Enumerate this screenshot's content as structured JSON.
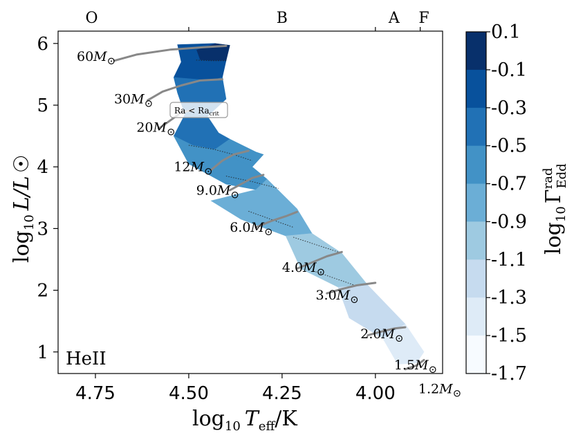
{
  "chart_data": {
    "type": "hr-diagram-contour",
    "title": "",
    "panel_label": "HeII",
    "xlabel": {
      "main": "log",
      "sub": "10",
      "var": "T",
      "varsub": "eff",
      "unit": "/K"
    },
    "ylabel": {
      "main": "log",
      "sub": "10",
      "var": "L/L",
      "sym": "☉"
    },
    "xlim": [
      4.85,
      3.82
    ],
    "ylim": [
      0.65,
      6.2
    ],
    "xticks": [
      {
        "value": 4.75,
        "label": "4.75"
      },
      {
        "value": 4.5,
        "label": "4.50"
      },
      {
        "value": 4.25,
        "label": "4.25"
      },
      {
        "value": 4.0,
        "label": "4.00"
      }
    ],
    "yticks": [
      {
        "value": 1,
        "label": "1"
      },
      {
        "value": 2,
        "label": "2"
      },
      {
        "value": 3,
        "label": "3"
      },
      {
        "value": 4,
        "label": "4"
      },
      {
        "value": 5,
        "label": "5"
      },
      {
        "value": 6,
        "label": "6"
      }
    ],
    "spectral_types": [
      {
        "label": "O",
        "position": 4.76
      },
      {
        "label": "B",
        "position": 4.25
      },
      {
        "label": "A",
        "position": 3.95
      },
      {
        "label": "F",
        "position": 3.87
      }
    ],
    "spectral_boundaries": [
      4.5,
      4.0,
      3.88
    ],
    "colorbar": {
      "label": {
        "main": "log",
        "sub": "10",
        "var": "Γ",
        "sup": "rad",
        "varsub": "Edd"
      },
      "ticks": [
        "0.1",
        "-0.1",
        "-0.3",
        "-0.5",
        "-0.7",
        "-0.9",
        "-1.1",
        "-1.3",
        "-1.5",
        "-1.7"
      ],
      "levels": [
        0.1,
        -0.1,
        -0.3,
        -0.5,
        -0.7,
        -0.9,
        -1.1,
        -1.3,
        -1.5,
        -1.7
      ],
      "colors": [
        "#08306b",
        "#08519c",
        "#2171b5",
        "#4292c6",
        "#6baed6",
        "#9ecae1",
        "#c6dbef",
        "#deebf7",
        "#f7fbff"
      ]
    },
    "contour_bands": [
      {
        "level": -0.1,
        "points": [
          [
            4.43,
            6.0
          ],
          [
            4.39,
            5.97
          ],
          [
            4.4,
            5.72
          ],
          [
            4.44,
            5.72
          ],
          [
            4.47,
            5.73
          ],
          [
            4.48,
            5.9
          ]
        ]
      },
      {
        "level": -0.3,
        "points": [
          [
            4.53,
            5.98
          ],
          [
            4.43,
            6.0
          ],
          [
            4.48,
            5.9
          ],
          [
            4.47,
            5.73
          ],
          [
            4.44,
            5.72
          ],
          [
            4.4,
            5.72
          ],
          [
            4.41,
            5.45
          ],
          [
            4.44,
            5.4
          ],
          [
            4.5,
            5.35
          ],
          [
            4.54,
            5.45
          ],
          [
            4.52,
            5.7
          ]
        ]
      },
      {
        "level": -0.5,
        "points": [
          [
            4.54,
            5.45
          ],
          [
            4.44,
            5.4
          ],
          [
            4.41,
            5.45
          ],
          [
            4.4,
            5.1
          ],
          [
            4.45,
            4.82
          ],
          [
            4.42,
            4.55
          ],
          [
            4.39,
            4.45
          ],
          [
            4.43,
            4.28
          ],
          [
            4.49,
            4.35
          ],
          [
            4.54,
            4.5
          ],
          [
            4.51,
            4.85
          ],
          [
            4.53,
            5.2
          ]
        ]
      },
      {
        "level": -0.7,
        "points": [
          [
            4.39,
            4.45
          ],
          [
            4.32,
            4.24
          ],
          [
            4.3,
            4.2
          ],
          [
            4.33,
            4.0
          ],
          [
            4.38,
            4.05
          ],
          [
            4.43,
            4.28
          ]
        ]
      },
      {
        "level": -0.7,
        "points": [
          [
            4.43,
            4.28
          ],
          [
            4.33,
            4.0
          ],
          [
            4.29,
            3.8
          ],
          [
            4.32,
            3.63
          ],
          [
            4.4,
            3.72
          ],
          [
            4.5,
            4.05
          ],
          [
            4.54,
            4.5
          ],
          [
            4.49,
            4.35
          ]
        ]
      },
      {
        "level": -0.9,
        "points": [
          [
            4.29,
            3.8
          ],
          [
            4.21,
            3.32
          ],
          [
            4.17,
            2.92
          ],
          [
            4.24,
            2.88
          ],
          [
            4.36,
            3.15
          ],
          [
            4.44,
            3.45
          ],
          [
            4.32,
            3.63
          ]
        ]
      },
      {
        "level": -1.1,
        "points": [
          [
            4.17,
            2.92
          ],
          [
            4.09,
            2.6
          ],
          [
            4.02,
            2.08
          ],
          [
            4.1,
            2.05
          ],
          [
            4.2,
            2.35
          ],
          [
            4.24,
            2.88
          ]
        ]
      },
      {
        "level": -1.3,
        "points": [
          [
            4.02,
            2.08
          ],
          [
            3.92,
            1.45
          ],
          [
            3.98,
            1.22
          ],
          [
            4.07,
            1.55
          ],
          [
            4.1,
            2.05
          ]
        ]
      },
      {
        "level": -1.5,
        "points": [
          [
            3.92,
            1.45
          ],
          [
            3.87,
            1.0
          ],
          [
            3.89,
            0.82
          ],
          [
            3.94,
            0.8
          ],
          [
            3.98,
            1.22
          ]
        ]
      }
    ],
    "dotted_contours": [
      [
        [
          4.48,
          5.73
        ],
        [
          4.44,
          5.72
        ],
        [
          4.4,
          5.72
        ]
      ],
      [
        [
          4.5,
          4.35
        ],
        [
          4.43,
          4.28
        ],
        [
          4.38,
          4.2
        ],
        [
          4.33,
          4.1
        ]
      ],
      [
        [
          4.4,
          3.85
        ],
        [
          4.33,
          3.76
        ],
        [
          4.26,
          3.65
        ]
      ],
      [
        [
          4.34,
          3.28
        ],
        [
          4.22,
          3.02
        ]
      ],
      [
        [
          4.22,
          2.86
        ],
        [
          4.1,
          2.62
        ]
      ],
      [
        [
          4.16,
          2.3
        ],
        [
          4.05,
          2.07
        ]
      ]
    ],
    "tracks": [
      {
        "mass": "60",
        "points": [
          [
            4.7,
            5.72
          ],
          [
            4.64,
            5.82
          ],
          [
            4.55,
            5.9
          ],
          [
            4.46,
            5.94
          ],
          [
            4.4,
            5.96
          ]
        ]
      },
      {
        "mass": "30",
        "points": [
          [
            4.61,
            5.08
          ],
          [
            4.57,
            5.22
          ],
          [
            4.52,
            5.32
          ],
          [
            4.47,
            5.4
          ],
          [
            4.41,
            5.42
          ]
        ]
      },
      {
        "mass": "20",
        "points": [
          [
            4.58,
            4.62
          ],
          [
            4.55,
            4.75
          ],
          [
            4.52,
            4.88
          ],
          [
            4.49,
            4.92
          ]
        ]
      },
      {
        "mass": "12",
        "points": [
          [
            4.44,
            3.95
          ],
          [
            4.41,
            4.1
          ],
          [
            4.38,
            4.2
          ],
          [
            4.34,
            4.26
          ]
        ]
      },
      {
        "mass": "9.0",
        "points": [
          [
            4.39,
            3.62
          ],
          [
            4.36,
            3.72
          ],
          [
            4.33,
            3.82
          ],
          [
            4.3,
            3.87
          ]
        ]
      },
      {
        "mass": "6.0",
        "points": [
          [
            4.32,
            3.02
          ],
          [
            4.28,
            3.12
          ],
          [
            4.24,
            3.2
          ],
          [
            4.21,
            3.27
          ]
        ]
      },
      {
        "mass": "4.0",
        "points": [
          [
            4.21,
            2.35
          ],
          [
            4.17,
            2.45
          ],
          [
            4.13,
            2.55
          ],
          [
            4.09,
            2.62
          ]
        ]
      },
      {
        "mass": "3.0",
        "points": [
          [
            4.13,
            1.95
          ],
          [
            4.09,
            2.02
          ],
          [
            4.05,
            2.08
          ],
          [
            4.0,
            2.12
          ]
        ]
      },
      {
        "mass": "2.0",
        "points": [
          [
            4.02,
            1.27
          ],
          [
            3.99,
            1.32
          ],
          [
            3.95,
            1.38
          ],
          [
            3.92,
            1.4
          ]
        ]
      },
      {
        "mass": "1.5",
        "points": [
          [
            3.92,
            0.72
          ],
          [
            3.89,
            0.78
          ],
          [
            3.87,
            0.87
          ]
        ]
      }
    ],
    "mass_labels": [
      {
        "mass": "60",
        "text": "60M",
        "sym": "⊙",
        "at": [
          4.8,
          5.72
        ]
      },
      {
        "mass": "30",
        "text": "30M",
        "sym": "⊙",
        "at": [
          4.7,
          5.03
        ]
      },
      {
        "mass": "20",
        "text": "20M",
        "sym": "⊙",
        "at": [
          4.64,
          4.57
        ]
      },
      {
        "mass": "12",
        "text": "12M",
        "sym": "⊙",
        "at": [
          4.54,
          3.93
        ]
      },
      {
        "mass": "9.0",
        "text": "9.0M",
        "sym": "⊙",
        "at": [
          4.48,
          3.55
        ]
      },
      {
        "mass": "6.0",
        "text": "6.0M",
        "sym": "⊙",
        "at": [
          4.39,
          2.95
        ]
      },
      {
        "mass": "4.0",
        "text": "4.0M",
        "sym": "⊙",
        "at": [
          4.25,
          2.3
        ]
      },
      {
        "mass": "3.0",
        "text": "3.0M",
        "sym": "⊙",
        "at": [
          4.16,
          1.85
        ]
      },
      {
        "mass": "2.0",
        "text": "2.0M",
        "sym": "⊙",
        "at": [
          4.04,
          1.22
        ]
      },
      {
        "mass": "1.5",
        "text": "1.5M",
        "sym": "⊙",
        "at": [
          3.95,
          0.72
        ]
      },
      {
        "mass": "1.2",
        "text": "1.2M",
        "sym": "⊙",
        "at": [
          3.885,
          0.33
        ]
      }
    ],
    "annotation": {
      "text": "Ra < Ra",
      "sub": "crit",
      "at": [
        4.475,
        4.88
      ]
    }
  },
  "colors": {
    "track": "#888888",
    "frame": "#000000",
    "dotted": "#222222"
  }
}
